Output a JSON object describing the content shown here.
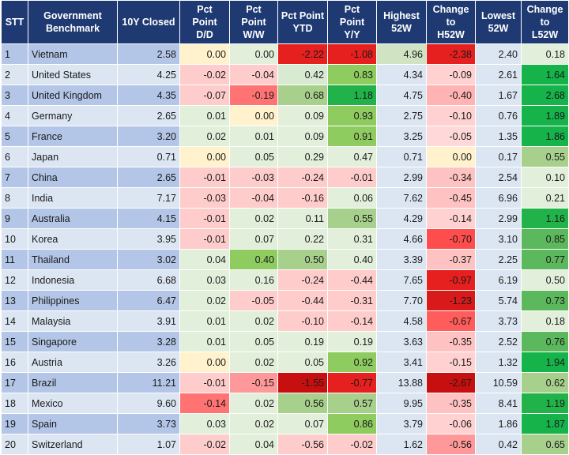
{
  "table": {
    "headers": [
      "STT",
      "Government\nBenchmark",
      "10Y Closed",
      "Pct\nPoint\nD/D",
      "Pct\nPoint\nW/W",
      "Pct Point\nYTD",
      "Pct\nPoint\nY/Y",
      "Highest\n52W",
      "Change\nto\nH52W",
      "Lowest\n52W",
      "Change\nto\nL52W"
    ],
    "rows": [
      [
        "1",
        "Vietnam",
        "2.58",
        "0.00",
        "0.00",
        "-2.22",
        "-1.08",
        "4.96",
        "-2.38",
        "2.40",
        "0.18"
      ],
      [
        "2",
        "United States",
        "4.25",
        "-0.02",
        "-0.04",
        "0.42",
        "0.83",
        "4.34",
        "-0.09",
        "2.61",
        "1.64"
      ],
      [
        "3",
        "United Kingdom",
        "4.35",
        "-0.07",
        "-0.19",
        "0.68",
        "1.18",
        "4.75",
        "-0.40",
        "1.67",
        "2.68"
      ],
      [
        "4",
        "Germany",
        "2.65",
        "0.01",
        "0.00",
        "0.09",
        "0.93",
        "2.75",
        "-0.10",
        "0.76",
        "1.89"
      ],
      [
        "5",
        "France",
        "3.20",
        "0.02",
        "0.01",
        "0.09",
        "0.91",
        "3.25",
        "-0.05",
        "1.35",
        "1.86"
      ],
      [
        "6",
        "Japan",
        "0.71",
        "0.00",
        "0.05",
        "0.29",
        "0.47",
        "0.71",
        "0.00",
        "0.17",
        "0.55"
      ],
      [
        "7",
        "China",
        "2.65",
        "-0.01",
        "-0.03",
        "-0.24",
        "-0.01",
        "2.99",
        "-0.34",
        "2.54",
        "0.10"
      ],
      [
        "8",
        "India",
        "7.17",
        "-0.03",
        "-0.04",
        "-0.16",
        "0.06",
        "7.62",
        "-0.45",
        "6.96",
        "0.21"
      ],
      [
        "9",
        "Australia",
        "4.15",
        "-0.01",
        "0.02",
        "0.11",
        "0.55",
        "4.29",
        "-0.14",
        "2.99",
        "1.16"
      ],
      [
        "10",
        "Korea",
        "3.95",
        "-0.01",
        "0.07",
        "0.22",
        "0.31",
        "4.66",
        "-0.70",
        "3.10",
        "0.85"
      ],
      [
        "11",
        "Thailand",
        "3.02",
        "0.04",
        "0.40",
        "0.50",
        "0.40",
        "3.39",
        "-0.37",
        "2.25",
        "0.77"
      ],
      [
        "12",
        "Indonesia",
        "6.68",
        "0.03",
        "0.16",
        "-0.24",
        "-0.44",
        "7.65",
        "-0.97",
        "6.19",
        "0.50"
      ],
      [
        "13",
        "Philippines",
        "6.47",
        "0.02",
        "-0.05",
        "-0.44",
        "-0.31",
        "7.70",
        "-1.23",
        "5.74",
        "0.73"
      ],
      [
        "14",
        "Malaysia",
        "3.91",
        "0.01",
        "0.02",
        "-0.10",
        "-0.14",
        "4.58",
        "-0.67",
        "3.73",
        "0.18"
      ],
      [
        "15",
        "Singapore",
        "3.28",
        "0.01",
        "0.05",
        "0.19",
        "0.19",
        "3.63",
        "-0.35",
        "2.52",
        "0.76"
      ],
      [
        "16",
        "Austria",
        "3.26",
        "0.00",
        "0.02",
        "0.05",
        "0.92",
        "3.41",
        "-0.15",
        "1.32",
        "1.94"
      ],
      [
        "17",
        "Brazil",
        "11.21",
        "-0.01",
        "-0.15",
        "-1.55",
        "-0.77",
        "13.88",
        "-2.67",
        "10.59",
        "0.62"
      ],
      [
        "18",
        "Mexico",
        "9.60",
        "-0.14",
        "0.02",
        "0.56",
        "0.57",
        "9.95",
        "-0.35",
        "8.41",
        "1.19"
      ],
      [
        "19",
        "Spain",
        "3.73",
        "0.03",
        "0.02",
        "0.07",
        "0.86",
        "3.79",
        "-0.06",
        "1.86",
        "1.87"
      ],
      [
        "20",
        "Switzerland",
        "1.07",
        "-0.02",
        "0.04",
        "-0.56",
        "-0.02",
        "1.62",
        "-0.56",
        "0.42",
        "0.65"
      ]
    ],
    "cell_colors": [
      [
        "#fff2cc",
        "#e2efda",
        "#e61f1f",
        "#e61f1f",
        "#d0e4c4",
        "#e61f1f",
        "#dce6f2",
        "#e2efda"
      ],
      [
        "#ffcccc",
        "#ffcccc",
        "#d9ead3",
        "#8fcc5f",
        "#dce6f2",
        "#ffd1d1",
        "#dce6f2",
        "#15b34a"
      ],
      [
        "#ffcccc",
        "#ff7373",
        "#a8d08d",
        "#21b34a",
        "#dce6f2",
        "#ffb3b3",
        "#dce6f2",
        "#15b34a"
      ],
      [
        "#e2efda",
        "#fff2cc",
        "#e2efda",
        "#8fcc5f",
        "#dce6f2",
        "#ffd1d1",
        "#dce6f2",
        "#15b34a"
      ],
      [
        "#e2efda",
        "#e2efda",
        "#e2efda",
        "#8fcc5f",
        "#dce6f2",
        "#ffd9d9",
        "#dce6f2",
        "#15b34a"
      ],
      [
        "#fff2cc",
        "#e2efda",
        "#e2efda",
        "#e2efda",
        "#dce6f2",
        "#fff2cc",
        "#dce6f2",
        "#a8d08d"
      ],
      [
        "#ffcccc",
        "#ffcccc",
        "#ffcccc",
        "#ffcccc",
        "#dce6f2",
        "#ffc2c2",
        "#dce6f2",
        "#e2efda"
      ],
      [
        "#ffcccc",
        "#ffcccc",
        "#ffcccc",
        "#e2efda",
        "#dce6f2",
        "#ffc2c2",
        "#dce6f2",
        "#e2efda"
      ],
      [
        "#ffcccc",
        "#e2efda",
        "#e2efda",
        "#a8d08d",
        "#dce6f2",
        "#ffd1d1",
        "#dce6f2",
        "#21b34a"
      ],
      [
        "#ffcccc",
        "#e2efda",
        "#e2efda",
        "#e2efda",
        "#dce6f2",
        "#ff4d4d",
        "#dce6f2",
        "#5cb85c"
      ],
      [
        "#e2efda",
        "#8fcc5f",
        "#a8d08d",
        "#e2efda",
        "#dce6f2",
        "#ffc2c2",
        "#dce6f2",
        "#5cb85c"
      ],
      [
        "#e2efda",
        "#e2efda",
        "#ffcccc",
        "#ffcccc",
        "#dce6f2",
        "#e61f1f",
        "#dce6f2",
        "#e2efda"
      ],
      [
        "#e2efda",
        "#ffcccc",
        "#ffcccc",
        "#ffcccc",
        "#dce6f2",
        "#d91a1a",
        "#dce6f2",
        "#5cb85c"
      ],
      [
        "#e2efda",
        "#e2efda",
        "#ffcccc",
        "#ffcccc",
        "#dce6f2",
        "#ff5c5c",
        "#dce6f2",
        "#e2efda"
      ],
      [
        "#e2efda",
        "#e2efda",
        "#e2efda",
        "#e2efda",
        "#dce6f2",
        "#ffc2c2",
        "#dce6f2",
        "#5cb85c"
      ],
      [
        "#fff2cc",
        "#e2efda",
        "#e2efda",
        "#8fcc5f",
        "#dce6f2",
        "#ffd1d1",
        "#dce6f2",
        "#15b34a"
      ],
      [
        "#ffcccc",
        "#ff9999",
        "#c80f0f",
        "#e61f1f",
        "#dce6f2",
        "#c80f0f",
        "#dce6f2",
        "#a8d08d"
      ],
      [
        "#ff7373",
        "#e2efda",
        "#a8d08d",
        "#a8d08d",
        "#dce6f2",
        "#ffc2c2",
        "#dce6f2",
        "#21b34a"
      ],
      [
        "#e2efda",
        "#e2efda",
        "#e2efda",
        "#8fcc5f",
        "#dce6f2",
        "#ffd1d1",
        "#dce6f2",
        "#15b34a"
      ],
      [
        "#ffcccc",
        "#e2efda",
        "#ffcccc",
        "#ffcccc",
        "#dce6f2",
        "#ff9999",
        "#dce6f2",
        "#a8d08d"
      ]
    ]
  }
}
